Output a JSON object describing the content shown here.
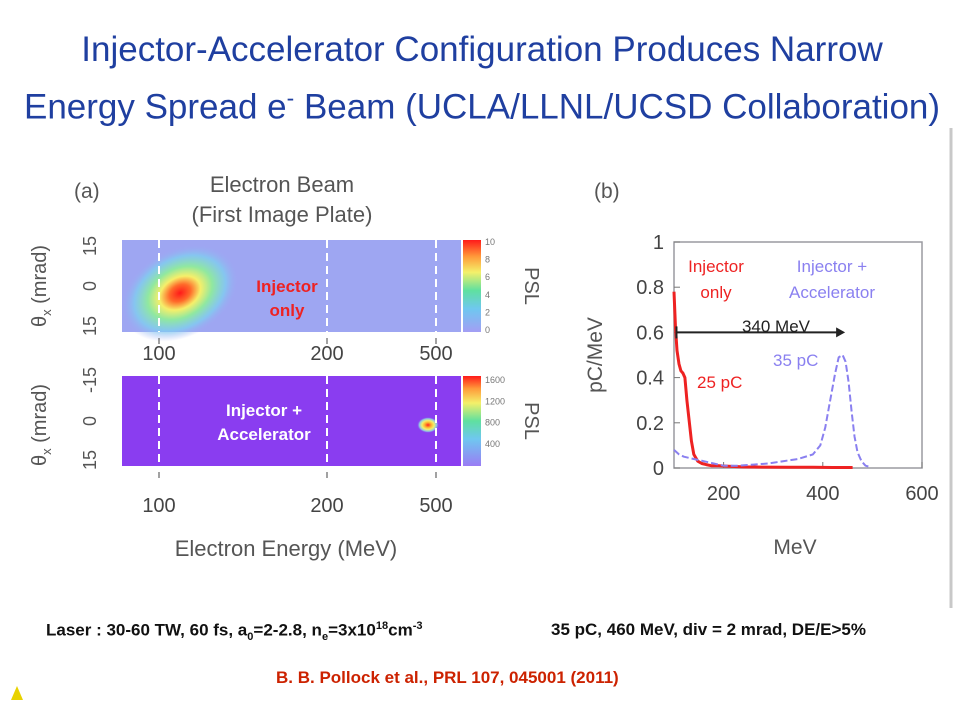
{
  "slide": {
    "title_line1": "Injector-Accelerator Configuration Produces Narrow",
    "title_line2_a": "Energy Spread e",
    "title_line2_sup": "-",
    "title_line2_b": " Beam (UCLA/LLNL/UCSD Collaboration)",
    "laser_a": "Laser : 30-60 TW, 60 fs, a",
    "laser_sub": "0",
    "laser_b": "=2-2.8, n",
    "laser_sub2": "e",
    "laser_c": "=3x10",
    "laser_sup": "18",
    "laser_d": "cm",
    "laser_sup2": "-3",
    "beam_params": "35 pC, 460 MeV, div = 2 mrad, DE/E>5%",
    "citation": "B. B. Pollock et al.,  PRL 107, 045001 (2011)"
  },
  "colors": {
    "title": "#1f3fa0",
    "injector_only": "#ee2222",
    "injector_accel": "#8a80f0",
    "ip_top_bg": "#9ea6f2",
    "ip_bottom_bg": "#8a3df0",
    "citation": "#cc2200"
  },
  "chart_data": [
    {
      "type": "heatmap",
      "panel_label": "(a)",
      "title": "Electron Beam",
      "subtitle": "(First Image Plate)",
      "xlabel": "Electron Energy (MeV)",
      "x_ticks": [
        "100",
        "200",
        "500"
      ],
      "rows": [
        {
          "ylabel": "θx (mrad)",
          "ylabel_main": "θ",
          "ylabel_sub": "x",
          "ylabel_rest": " (mrad)",
          "y_ticks": [
            "15",
            "0",
            "15"
          ],
          "annotation": [
            "Injector",
            "only"
          ],
          "colorbar_label": "PSL",
          "colorbar_ticks": [
            "10",
            "8",
            "6",
            "4",
            "2",
            "0"
          ]
        },
        {
          "ylabel": "θx (mrad)",
          "ylabel_main": "θ",
          "ylabel_sub": "x",
          "ylabel_rest": " (mrad)",
          "y_ticks": [
            "-15",
            "0",
            "15"
          ],
          "annotation": [
            "Injector +",
            "Accelerator"
          ],
          "colorbar_label": "PSL",
          "colorbar_ticks": [
            "1600",
            "1200",
            "800",
            "400"
          ]
        }
      ]
    },
    {
      "type": "line",
      "panel_label": "(b)",
      "xlabel": "MeV",
      "ylabel": "pC/MeV",
      "xlim": [
        100,
        600
      ],
      "ylim": [
        0,
        1
      ],
      "x_ticks": [
        200,
        400,
        600
      ],
      "y_ticks": [
        0,
        0.2,
        0.4,
        0.6,
        0.8,
        1
      ],
      "series": [
        {
          "name": "Injector only",
          "label_lines": [
            "Injector",
            "only"
          ],
          "charge_label": "25 pC",
          "x": [
            100,
            103,
            106,
            110,
            114,
            118,
            122,
            126,
            130,
            135,
            140,
            148,
            156,
            165,
            175,
            190,
            210,
            240,
            280,
            330,
            380,
            420,
            460
          ],
          "y": [
            0.78,
            0.62,
            0.52,
            0.46,
            0.43,
            0.42,
            0.4,
            0.3,
            0.22,
            0.12,
            0.06,
            0.03,
            0.02,
            0.015,
            0.01,
            0.01,
            0.008,
            0.005,
            0.004,
            0.003,
            0.003,
            0.002,
            0.002
          ]
        },
        {
          "name": "Injector + Accelerator",
          "label_lines": [
            "Injector +",
            "Accelerator"
          ],
          "charge_label": "35 pC",
          "x": [
            100,
            110,
            120,
            140,
            160,
            180,
            200,
            230,
            260,
            290,
            320,
            350,
            380,
            395,
            405,
            415,
            425,
            432,
            440,
            446,
            452,
            458,
            464,
            470,
            478,
            486,
            495
          ],
          "y": [
            0.08,
            0.06,
            0.05,
            0.04,
            0.03,
            0.02,
            0.01,
            0.01,
            0.015,
            0.02,
            0.03,
            0.04,
            0.06,
            0.1,
            0.18,
            0.3,
            0.42,
            0.49,
            0.5,
            0.47,
            0.38,
            0.25,
            0.14,
            0.07,
            0.03,
            0.01,
            0.005
          ]
        }
      ],
      "annotations": [
        {
          "text": "340 MeV",
          "x_from": 105,
          "x_to": 445
        }
      ]
    }
  ]
}
